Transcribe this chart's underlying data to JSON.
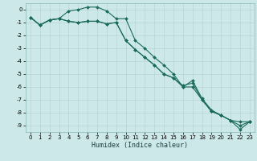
{
  "xlabel": "Humidex (Indice chaleur)",
  "bg_color": "#cce8e8",
  "grid_color": "#b8d4d4",
  "line_color": "#1a6b5a",
  "xlim": [
    -0.5,
    23.5
  ],
  "ylim": [
    -9.5,
    0.5
  ],
  "xticks": [
    0,
    1,
    2,
    3,
    4,
    5,
    6,
    7,
    8,
    9,
    10,
    11,
    12,
    13,
    14,
    15,
    16,
    17,
    18,
    19,
    20,
    21,
    22,
    23
  ],
  "yticks": [
    0,
    -1,
    -2,
    -3,
    -4,
    -5,
    -6,
    -7,
    -8,
    -9
  ],
  "series1_x": [
    0,
    1,
    2,
    3,
    4,
    5,
    6,
    7,
    8,
    9,
    10,
    11,
    12,
    13,
    14,
    15,
    16,
    17,
    18,
    19,
    20,
    21,
    22,
    23
  ],
  "series1_y": [
    -0.6,
    -1.2,
    -0.8,
    -0.7,
    -0.1,
    0.0,
    0.2,
    0.2,
    -0.1,
    -0.7,
    -0.7,
    -2.4,
    -3.0,
    -3.7,
    -4.3,
    -5.0,
    -6.0,
    -5.5,
    -6.9,
    -7.8,
    -8.2,
    -8.6,
    -9.3,
    -8.7
  ],
  "series2_x": [
    0,
    1,
    2,
    3,
    4,
    5,
    6,
    7,
    8,
    9,
    10,
    11,
    12,
    13,
    14,
    15,
    16,
    17,
    18,
    19,
    20,
    21,
    22,
    23
  ],
  "series2_y": [
    -0.6,
    -1.2,
    -0.8,
    -0.7,
    -0.9,
    -1.0,
    -0.9,
    -0.9,
    -1.1,
    -1.0,
    -2.4,
    -3.1,
    -3.7,
    -4.3,
    -5.0,
    -5.3,
    -6.0,
    -6.0,
    -7.0,
    -7.9,
    -8.2,
    -8.6,
    -9.0,
    -8.7
  ],
  "series3_x": [
    0,
    1,
    2,
    3,
    4,
    5,
    6,
    7,
    8,
    9,
    10,
    11,
    12,
    13,
    14,
    15,
    16,
    17,
    18,
    19,
    20,
    21,
    22,
    23
  ],
  "series3_y": [
    -0.6,
    -1.2,
    -0.8,
    -0.7,
    -0.9,
    -1.0,
    -0.9,
    -0.9,
    -1.1,
    -1.0,
    -2.4,
    -3.1,
    -3.7,
    -4.3,
    -5.0,
    -5.3,
    -5.9,
    -5.7,
    -7.0,
    -7.9,
    -8.2,
    -8.6,
    -8.7,
    -8.7
  ],
  "xlabel_fontsize": 6,
  "tick_fontsize": 5,
  "line_width": 0.8,
  "marker_size": 2
}
